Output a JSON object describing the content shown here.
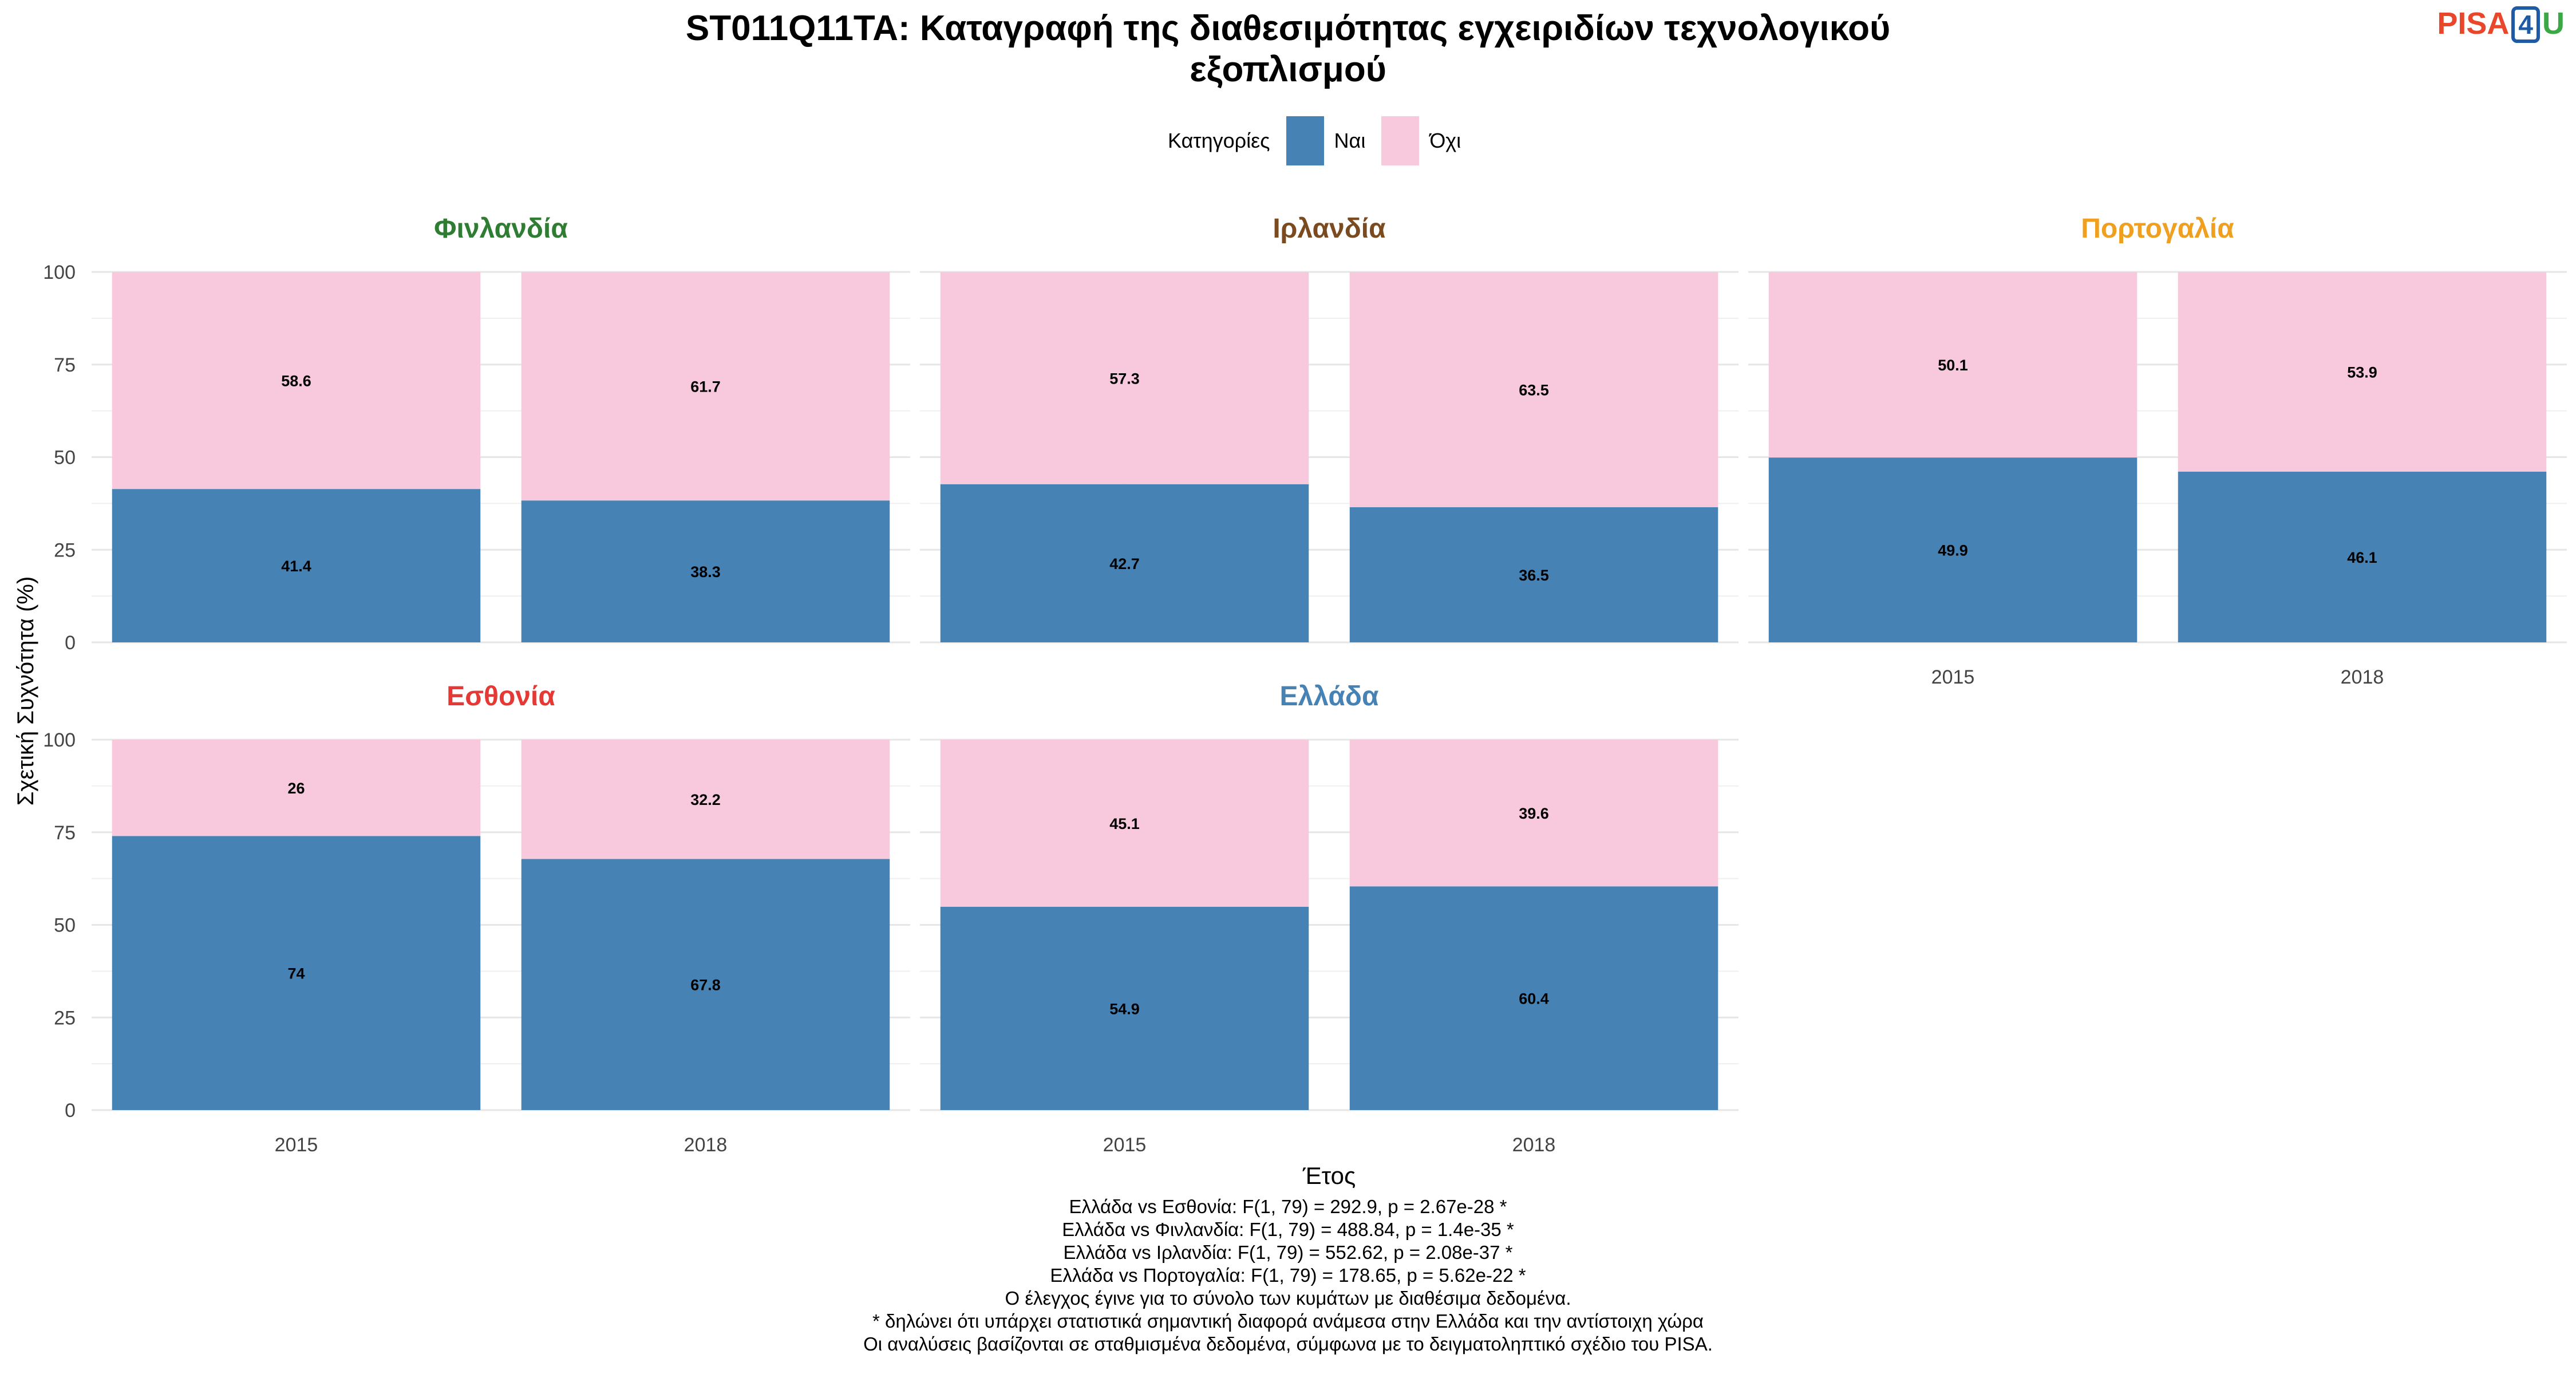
{
  "chart_data": {
    "type": "bar",
    "stacked": true,
    "title_line1": "ST011Q11TA: Καταγραφή της διαθεσιμότητας εγχειριδίων τεχνολογικού",
    "title_line2": "εξοπλισμού",
    "xlabel": "Έτος",
    "ylabel": "Σχετική Συχνότητα (%)",
    "ylim": [
      0,
      100
    ],
    "yticks": [
      "0",
      "25",
      "50",
      "75",
      "100"
    ],
    "categories": [
      "2015",
      "2018"
    ],
    "legend": {
      "title": "Κατηγορίες",
      "position": "top",
      "items": [
        {
          "name": "Ναι",
          "color": "#4682b4"
        },
        {
          "name": "Όχι",
          "color": "#f8c8dc"
        }
      ]
    },
    "facets": [
      {
        "name": "Φινλανδία",
        "color": "#2e7d32",
        "nai": [
          41.4,
          38.3
        ],
        "oxi": [
          58.6,
          61.7
        ],
        "nai_labels": [
          "41.4",
          "38.3"
        ],
        "oxi_labels": [
          "58.6",
          "61.7"
        ]
      },
      {
        "name": "Ιρλανδία",
        "color": "#7b4a1e",
        "nai": [
          42.7,
          36.5
        ],
        "oxi": [
          57.3,
          63.5
        ],
        "nai_labels": [
          "42.7",
          "36.5"
        ],
        "oxi_labels": [
          "57.3",
          "63.5"
        ]
      },
      {
        "name": "Πορτογαλία",
        "color": "#f0a020",
        "nai": [
          49.9,
          46.1
        ],
        "oxi": [
          50.1,
          53.9
        ],
        "nai_labels": [
          "49.9",
          "46.1"
        ],
        "oxi_labels": [
          "50.1",
          "53.9"
        ]
      },
      {
        "name": "Εσθονία",
        "color": "#e53935",
        "nai": [
          74,
          67.8
        ],
        "oxi": [
          26,
          32.2
        ],
        "nai_labels": [
          "74",
          "67.8"
        ],
        "oxi_labels": [
          "26",
          "32.2"
        ]
      },
      {
        "name": "Ελλάδα",
        "color": "#4682b4",
        "nai": [
          54.9,
          60.4
        ],
        "oxi": [
          45.1,
          39.6
        ],
        "nai_labels": [
          "54.9",
          "60.4"
        ],
        "oxi_labels": [
          "45.1",
          "39.6"
        ]
      }
    ],
    "grid": true
  },
  "logo": {
    "pisa": "PISA",
    "four": "4",
    "u": "U"
  },
  "notes": [
    "Ελλάδα vs Εσθονία: F(1, 79) = 292.9, p = 2.67e-28 *",
    "Ελλάδα vs Φινλανδία: F(1, 79) = 488.84, p = 1.4e-35 *",
    "Ελλάδα vs Ιρλανδία: F(1, 79) = 552.62, p = 2.08e-37 *",
    "Ελλάδα vs Πορτογαλία: F(1, 79) = 178.65, p = 5.62e-22 *",
    "Ο έλεγχος έγινε για το σύνολο των κυμάτων με διαθέσιμα δεδομένα.",
    "* δηλώνει ότι υπάρχει στατιστικά σημαντική διαφορά ανάμεσα στην Ελλάδα και την αντίστοιχη χώρα",
    "Οι αναλύσεις βασίζονται σε σταθμισμένα δεδομένα, σύμφωνα με το δειγματοληπτικό σχέδιο του PISA."
  ]
}
